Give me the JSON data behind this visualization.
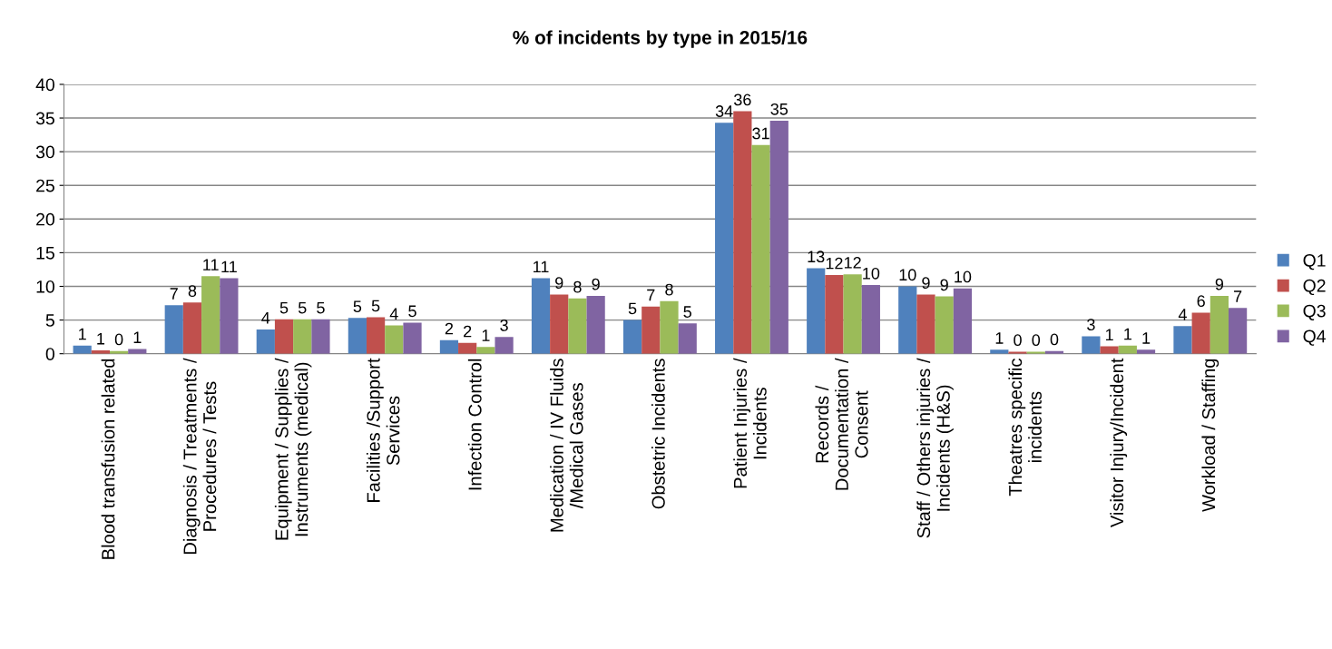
{
  "chart_data": {
    "type": "bar",
    "title": "% of incidents by type in 2015/16",
    "categories": [
      "Blood transfusion related",
      "Diagnosis / Treatments /\nProcedures / Tests",
      "Equipment / Supplies /\nInstruments (medical)",
      "Facilities /Support\nServices",
      "Infection Control",
      "Medication / IV Fluids\n/Medical Gases",
      "Obstetric Incidents",
      "Patient Injuries /\nIncidents",
      "Records /\nDocumentation /\nConsent",
      "Staff / Others injuries /\nIncidents (H&S)",
      "Theatres specific\nincidents",
      "Visitor Injury/Incident",
      "Workload / Staffing"
    ],
    "series": [
      {
        "name": "Q1",
        "color": "#4f81bd",
        "values": [
          1.2,
          7.2,
          3.6,
          5.3,
          2.0,
          11.2,
          5.0,
          34.3,
          12.7,
          10.0,
          0.6,
          2.6,
          4.1
        ],
        "value_labels": [
          "1",
          "7",
          "4",
          "5",
          "2",
          "11",
          "5",
          "34",
          "13",
          "10",
          "1",
          "3",
          "4"
        ]
      },
      {
        "name": "Q2",
        "color": "#c0504d",
        "values": [
          0.5,
          7.6,
          5.1,
          5.4,
          1.6,
          8.8,
          7.0,
          36.0,
          11.7,
          8.8,
          0.3,
          1.1,
          6.1
        ],
        "value_labels": [
          "1",
          "8",
          "5",
          "5",
          "2",
          "9",
          "7",
          "36",
          "12",
          "9",
          "0",
          "1",
          "6"
        ]
      },
      {
        "name": "Q3",
        "color": "#9bbb59",
        "values": [
          0.4,
          11.5,
          5.1,
          4.2,
          1.0,
          8.2,
          7.8,
          31.0,
          11.8,
          8.5,
          0.3,
          1.2,
          8.6
        ],
        "value_labels": [
          "0",
          "11",
          "5",
          "4",
          "1",
          "8",
          "8",
          "31",
          "12",
          "9",
          "0",
          "1",
          "9"
        ]
      },
      {
        "name": "Q4",
        "color": "#8064a2",
        "values": [
          0.7,
          11.2,
          5.1,
          4.6,
          2.5,
          8.6,
          4.5,
          34.6,
          10.2,
          9.7,
          0.4,
          0.6,
          6.8
        ],
        "value_labels": [
          "1",
          "11",
          "5",
          "5",
          "3",
          "9",
          "5",
          "35",
          "10",
          "10",
          "0",
          "1",
          "7"
        ]
      }
    ],
    "ylim": [
      0,
      40
    ],
    "yticks": [
      0,
      5,
      10,
      15,
      20,
      25,
      30,
      35,
      40
    ],
    "grid": "y",
    "legend": "right"
  }
}
